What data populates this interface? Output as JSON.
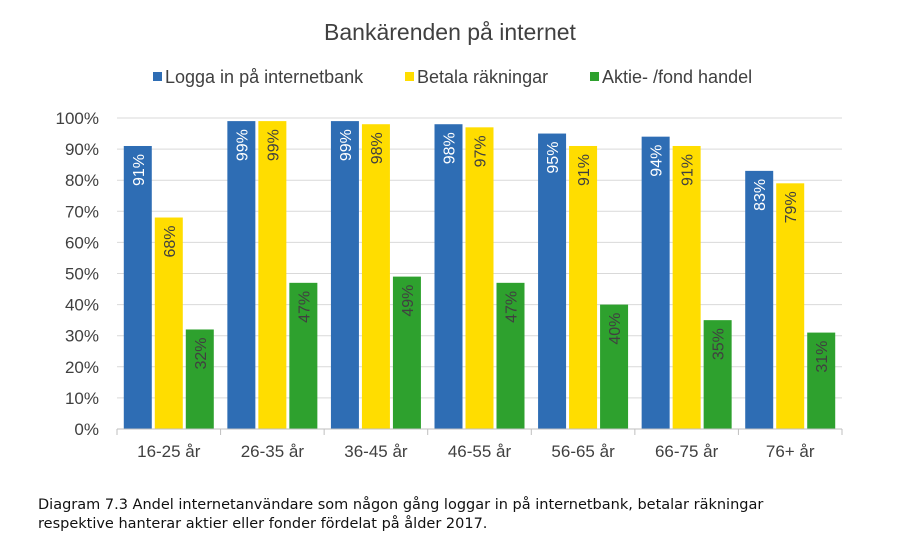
{
  "chart_data": {
    "type": "bar",
    "title": "Bankärenden på internet",
    "categories": [
      "16-25 år",
      "26-35 år",
      "36-45 år",
      "46-55 år",
      "56-65 år",
      "66-75 år",
      "76+ år"
    ],
    "series": [
      {
        "name": "Logga in på internetbank",
        "color": "#2e6db4",
        "values": [
          91,
          99,
          99,
          98,
          95,
          94,
          83
        ],
        "labels": [
          "91%",
          "99%",
          "99%",
          "98%",
          "95%",
          "94%",
          "83%"
        ]
      },
      {
        "name": "Betala räkningar",
        "color": "#ffdd00",
        "values": [
          68,
          99,
          98,
          97,
          91,
          91,
          79
        ],
        "labels": [
          "68%",
          "99%",
          "98%",
          "97%",
          "91%",
          "91%",
          "79%"
        ]
      },
      {
        "name": "Aktie- /fond handel",
        "color": "#2ea12e",
        "values": [
          32,
          47,
          49,
          47,
          40,
          35,
          31
        ],
        "labels": [
          "32%",
          "47%",
          "49%",
          "47%",
          "40%",
          "35%",
          "31%"
        ]
      }
    ],
    "yticks": [
      "0%",
      "10%",
      "20%",
      "30%",
      "40%",
      "50%",
      "60%",
      "70%",
      "80%",
      "90%",
      "100%"
    ],
    "ylim": [
      0,
      100
    ],
    "grid": true,
    "legend": "top"
  },
  "caption": {
    "line1": "Diagram 7.3 Andel internetanvändare som någon gång loggar in på internetbank, betalar räkningar",
    "line2": "respektive hanterar aktier eller fonder fördelat på ålder 2017."
  }
}
